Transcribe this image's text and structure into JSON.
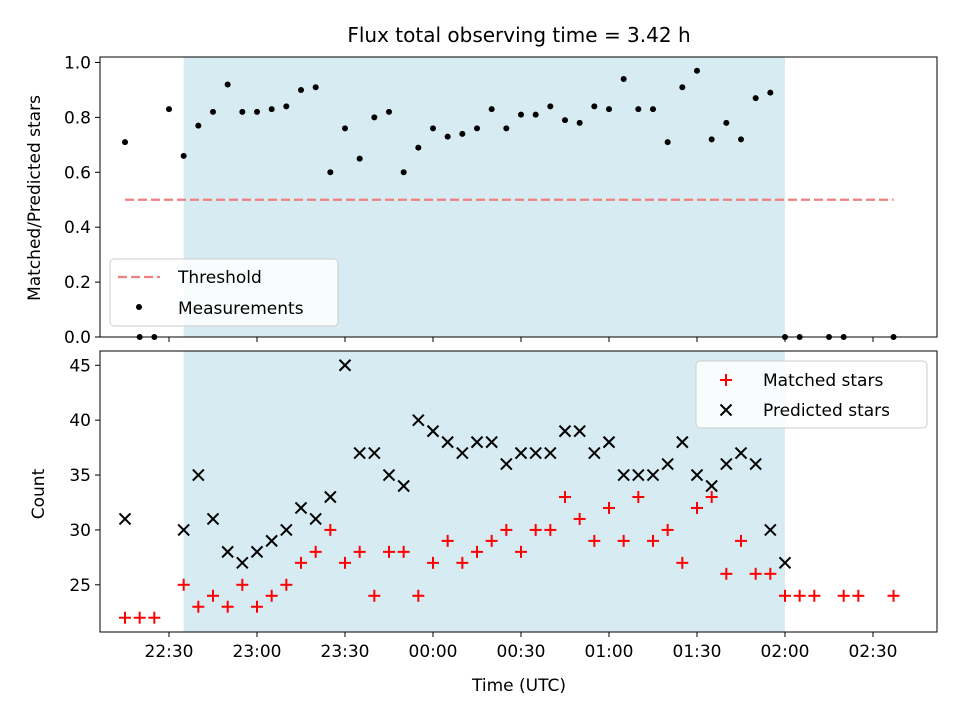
{
  "chart_data": [
    {
      "type": "scatter",
      "title": "Flux total observing time = 3.42 h",
      "xlabel": "",
      "ylabel": "Matched/Predicted stars",
      "ylim": [
        0,
        1.02
      ],
      "yticks": [
        "0.0",
        "0.2",
        "0.4",
        "0.6",
        "0.8",
        "1.0"
      ],
      "observing_window": {
        "start": "22:35",
        "end": "02:00"
      },
      "legend_position": "lower-left",
      "threshold": {
        "name": "Threshold",
        "value": 0.5,
        "x_start": "22:15",
        "x_end": "02:37",
        "color": "#f08080"
      },
      "series": [
        {
          "name": "Measurements",
          "color": "#000000",
          "points": [
            [
              "22:15",
              0.71
            ],
            [
              "22:20",
              0.0
            ],
            [
              "22:25",
              0.0
            ],
            [
              "22:30",
              0.83
            ],
            [
              "22:35",
              0.66
            ],
            [
              "22:40",
              0.77
            ],
            [
              "22:45",
              0.82
            ],
            [
              "22:50",
              0.92
            ],
            [
              "22:55",
              0.82
            ],
            [
              "23:00",
              0.82
            ],
            [
              "23:05",
              0.83
            ],
            [
              "23:10",
              0.84
            ],
            [
              "23:15",
              0.9
            ],
            [
              "23:20",
              0.91
            ],
            [
              "23:25",
              0.6
            ],
            [
              "23:30",
              0.76
            ],
            [
              "23:35",
              0.65
            ],
            [
              "23:40",
              0.8
            ],
            [
              "23:45",
              0.82
            ],
            [
              "23:50",
              0.6
            ],
            [
              "23:55",
              0.69
            ],
            [
              "00:00",
              0.76
            ],
            [
              "00:05",
              0.73
            ],
            [
              "00:10",
              0.74
            ],
            [
              "00:15",
              0.76
            ],
            [
              "00:20",
              0.83
            ],
            [
              "00:25",
              0.76
            ],
            [
              "00:30",
              0.81
            ],
            [
              "00:35",
              0.81
            ],
            [
              "00:40",
              0.84
            ],
            [
              "00:45",
              0.79
            ],
            [
              "00:50",
              0.78
            ],
            [
              "00:55",
              0.84
            ],
            [
              "01:00",
              0.83
            ],
            [
              "01:05",
              0.94
            ],
            [
              "01:10",
              0.83
            ],
            [
              "01:15",
              0.83
            ],
            [
              "01:20",
              0.71
            ],
            [
              "01:25",
              0.91
            ],
            [
              "01:30",
              0.97
            ],
            [
              "01:35",
              0.72
            ],
            [
              "01:40",
              0.78
            ],
            [
              "01:45",
              0.72
            ],
            [
              "01:50",
              0.87
            ],
            [
              "01:55",
              0.89
            ],
            [
              "02:00",
              0.0
            ],
            [
              "02:05",
              0.0
            ],
            [
              "02:15",
              0.0
            ],
            [
              "02:20",
              0.0
            ],
            [
              "02:37",
              0.0
            ]
          ]
        }
      ]
    },
    {
      "type": "scatter",
      "title": "",
      "xlabel": "Time (UTC)",
      "ylabel": "Count",
      "ylim": [
        20.7,
        46.3
      ],
      "yticks": [
        "25",
        "30",
        "35",
        "40",
        "45"
      ],
      "xticks": [
        "22:30",
        "23:00",
        "23:30",
        "00:00",
        "00:30",
        "01:00",
        "01:30",
        "02:00",
        "02:30"
      ],
      "observing_window": {
        "start": "22:35",
        "end": "02:00"
      },
      "legend_position": "top-right",
      "series": [
        {
          "name": "Matched stars",
          "color": "#ff0000",
          "marker": "plus",
          "points": [
            [
              "22:15",
              22
            ],
            [
              "22:20",
              22
            ],
            [
              "22:25",
              22
            ],
            [
              "22:35",
              25
            ],
            [
              "22:40",
              23
            ],
            [
              "22:45",
              24
            ],
            [
              "22:50",
              23
            ],
            [
              "22:55",
              25
            ],
            [
              "23:00",
              23
            ],
            [
              "23:05",
              24
            ],
            [
              "23:10",
              25
            ],
            [
              "23:15",
              27
            ],
            [
              "23:20",
              28
            ],
            [
              "23:25",
              30
            ],
            [
              "23:30",
              27
            ],
            [
              "23:35",
              28
            ],
            [
              "23:40",
              24
            ],
            [
              "23:45",
              28
            ],
            [
              "23:50",
              28
            ],
            [
              "23:55",
              24
            ],
            [
              "00:00",
              27
            ],
            [
              "00:05",
              29
            ],
            [
              "00:10",
              27
            ],
            [
              "00:15",
              28
            ],
            [
              "00:20",
              29
            ],
            [
              "00:25",
              30
            ],
            [
              "00:30",
              28
            ],
            [
              "00:35",
              30
            ],
            [
              "00:40",
              30
            ],
            [
              "00:45",
              33
            ],
            [
              "00:50",
              31
            ],
            [
              "00:55",
              29
            ],
            [
              "01:00",
              32
            ],
            [
              "01:05",
              29
            ],
            [
              "01:10",
              33
            ],
            [
              "01:15",
              29
            ],
            [
              "01:20",
              30
            ],
            [
              "01:25",
              27
            ],
            [
              "01:30",
              32
            ],
            [
              "01:35",
              33
            ],
            [
              "01:40",
              26
            ],
            [
              "01:45",
              29
            ],
            [
              "01:50",
              26
            ],
            [
              "01:55",
              26
            ],
            [
              "02:00",
              24
            ],
            [
              "02:05",
              24
            ],
            [
              "02:10",
              24
            ],
            [
              "02:20",
              24
            ],
            [
              "02:25",
              24
            ],
            [
              "02:37",
              24
            ]
          ]
        },
        {
          "name": "Predicted stars",
          "color": "#000000",
          "marker": "x",
          "points": [
            [
              "22:15",
              31
            ],
            [
              "22:35",
              30
            ],
            [
              "22:40",
              35
            ],
            [
              "22:45",
              31
            ],
            [
              "22:50",
              28
            ],
            [
              "22:55",
              27
            ],
            [
              "23:00",
              28
            ],
            [
              "23:05",
              29
            ],
            [
              "23:10",
              30
            ],
            [
              "23:15",
              32
            ],
            [
              "23:20",
              31
            ],
            [
              "23:25",
              33
            ],
            [
              "23:30",
              45
            ],
            [
              "23:35",
              37
            ],
            [
              "23:40",
              37
            ],
            [
              "23:45",
              35
            ],
            [
              "23:50",
              34
            ],
            [
              "23:55",
              40
            ],
            [
              "00:00",
              39
            ],
            [
              "00:05",
              38
            ],
            [
              "00:10",
              37
            ],
            [
              "00:15",
              38
            ],
            [
              "00:20",
              38
            ],
            [
              "00:25",
              36
            ],
            [
              "00:30",
              37
            ],
            [
              "00:35",
              37
            ],
            [
              "00:40",
              37
            ],
            [
              "00:45",
              39
            ],
            [
              "00:50",
              39
            ],
            [
              "00:55",
              37
            ],
            [
              "01:00",
              38
            ],
            [
              "01:05",
              35
            ],
            [
              "01:10",
              35
            ],
            [
              "01:15",
              35
            ],
            [
              "01:20",
              36
            ],
            [
              "01:25",
              38
            ],
            [
              "01:30",
              35
            ],
            [
              "01:35",
              34
            ],
            [
              "01:40",
              36
            ],
            [
              "01:45",
              37
            ],
            [
              "01:50",
              36
            ],
            [
              "01:55",
              30
            ],
            [
              "02:00",
              27
            ]
          ]
        }
      ]
    }
  ],
  "colors": {
    "window": "#add8e6",
    "window_opacity": 0.5
  }
}
